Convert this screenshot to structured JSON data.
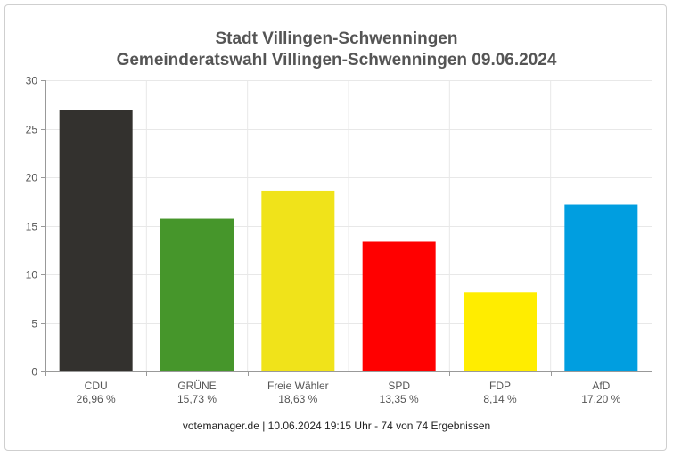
{
  "chart_data": {
    "type": "bar",
    "title": "Stadt Villingen-Schwenningen",
    "subtitle": "Gemeinderatswahl Villingen-Schwenningen 09.06.2024",
    "categories": [
      "CDU",
      "GRÜNE",
      "Freie Wähler",
      "SPD",
      "FDP",
      "AfD"
    ],
    "value_labels": [
      "26,96 %",
      "15,73 %",
      "18,63 %",
      "13,35 %",
      "8,14 %",
      "17,20 %"
    ],
    "values": [
      26.96,
      15.73,
      18.63,
      13.35,
      8.14,
      17.2
    ],
    "colors": [
      "#33312e",
      "#46962b",
      "#f0e31a",
      "#ff0000",
      "#ffed00",
      "#009ee0"
    ],
    "ylim": [
      0,
      30
    ],
    "yticks": [
      0,
      5,
      10,
      15,
      20,
      25,
      30
    ],
    "grid": true,
    "legend": "none"
  },
  "footer": "votemanager.de | 10.06.2024 19:15 Uhr - 74 von 74 Ergebnissen"
}
